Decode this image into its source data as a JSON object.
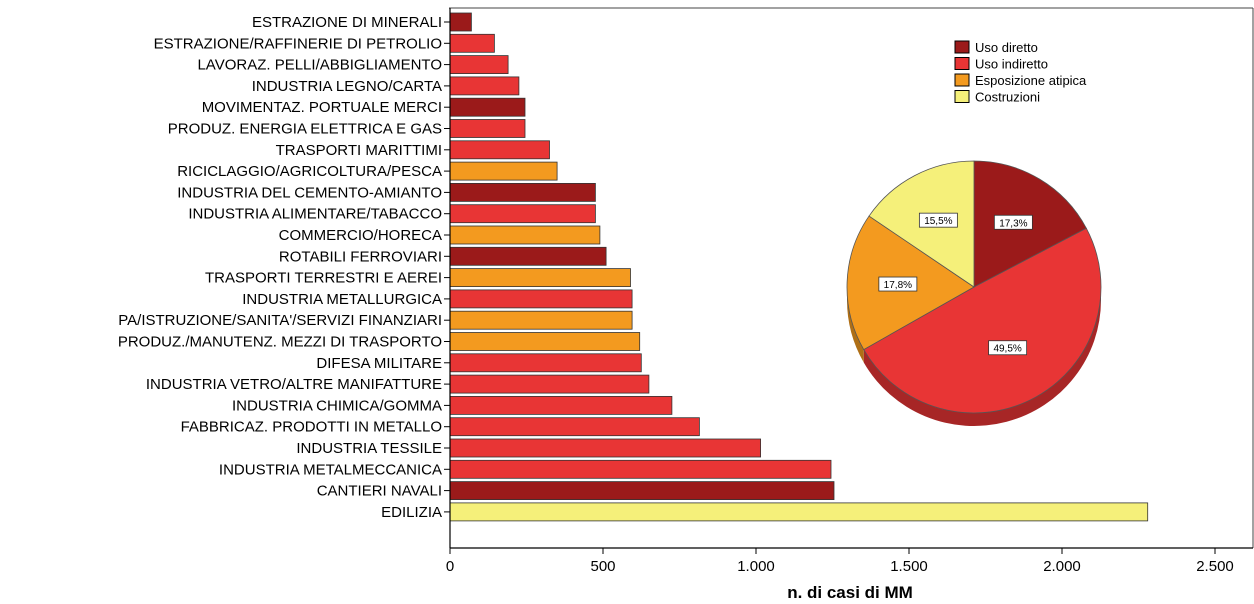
{
  "chart_data": [
    {
      "type": "bar",
      "orientation": "horizontal",
      "xlabel": "n. di casi di MM",
      "xlim": [
        0,
        2500
      ],
      "xticks": [
        0,
        500,
        1000,
        1500,
        2000,
        2500
      ],
      "xtick_labels": [
        "0",
        "500",
        "1.000",
        "1.500",
        "2.000",
        "2.500"
      ],
      "grid": false,
      "categories": [
        "ESTRAZIONE DI MINERALI",
        "ESTRAZIONE/RAFFINERIE DI PETROLIO",
        "LAVORAZ. PELLI/ABBIGLIAMENTO",
        "INDUSTRIA LEGNO/CARTA",
        "MOVIMENTAZ. PORTUALE MERCI",
        "PRODUZ. ENERGIA ELETTRICA E GAS",
        "TRASPORTI MARITTIMI",
        "RICICLAGGIO/AGRICOLTURA/PESCA",
        "INDUSTRIA DEL CEMENTO-AMIANTO",
        "INDUSTRIA ALIMENTARE/TABACCO",
        "COMMERCIO/HORECA",
        "ROTABILI FERROVIARI",
        "TRASPORTI TERRESTRI E AEREI",
        "INDUSTRIA METALLURGICA",
        "PA/ISTRUZIONE/SANITA'/SERVIZI FINANZIARI",
        "PRODUZ./MANUTENZ. MEZZI DI TRASPORTO",
        "DIFESA MILITARE",
        "INDUSTRIA VETRO/ALTRE MANIFATTURE",
        "INDUSTRIA CHIMICA/GOMMA",
        "FABBRICAZ. PRODOTTI IN METALLO",
        "INDUSTRIA TESSILE",
        "INDUSTRIA METALMECCANICA",
        "CANTIERI NAVALI",
        "EDILIZIA"
      ],
      "values": [
        70,
        145,
        190,
        225,
        245,
        245,
        325,
        350,
        475,
        475,
        490,
        510,
        590,
        595,
        595,
        620,
        625,
        650,
        725,
        815,
        1015,
        1245,
        1255,
        2280
      ],
      "groups": [
        "Uso diretto",
        "Uso indiretto",
        "Uso indiretto",
        "Uso indiretto",
        "Uso diretto",
        "Uso indiretto",
        "Uso indiretto",
        "Esposizione atipica",
        "Uso diretto",
        "Uso indiretto",
        "Esposizione atipica",
        "Uso diretto",
        "Esposizione atipica",
        "Uso indiretto",
        "Esposizione atipica",
        "Esposizione atipica",
        "Uso indiretto",
        "Uso indiretto",
        "Uso indiretto",
        "Uso indiretto",
        "Uso indiretto",
        "Uso indiretto",
        "Uso diretto",
        "Costruzioni"
      ],
      "legend": {
        "position": "top-right",
        "entries": [
          {
            "label": "Uso diretto",
            "color": "#9b1a1a"
          },
          {
            "label": "Uso indiretto",
            "color": "#e83535"
          },
          {
            "label": "Esposizione atipica",
            "color": "#f39a1f"
          },
          {
            "label": "Costruzioni",
            "color": "#f5f07a"
          }
        ]
      }
    },
    {
      "type": "pie",
      "slices": [
        {
          "label": "Uso diretto",
          "value": 17.3,
          "text": "17,3%",
          "color": "#9b1a1a"
        },
        {
          "label": "Uso indiretto",
          "value": 49.5,
          "text": "49,5%",
          "color": "#e83535"
        },
        {
          "label": "Esposizione atipica",
          "value": 17.8,
          "text": "17,8%",
          "color": "#f39a1f"
        },
        {
          "label": "Costruzioni",
          "value": 15.5,
          "text": "15,5%",
          "color": "#f5f07a"
        }
      ]
    }
  ]
}
